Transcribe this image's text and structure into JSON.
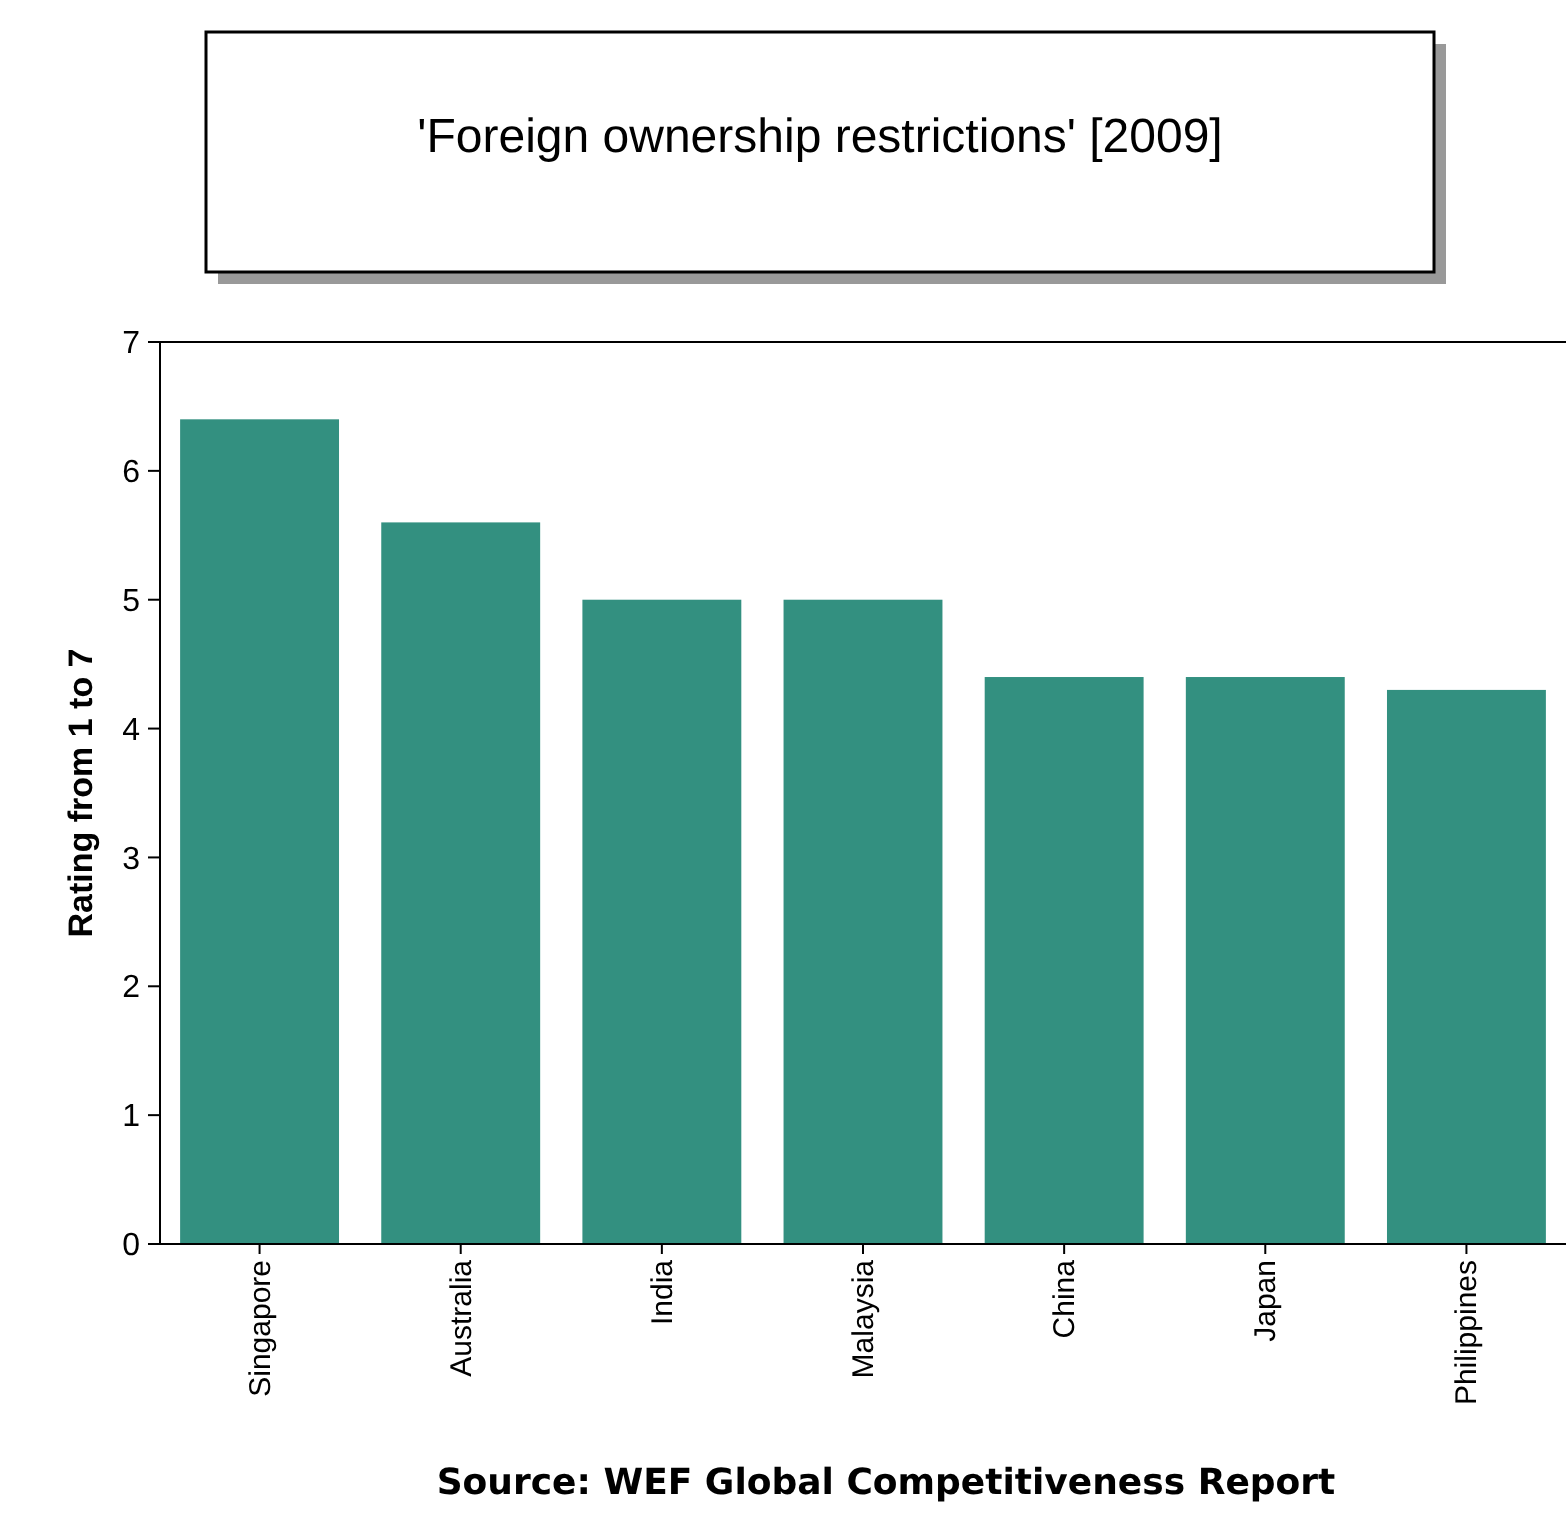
{
  "chart_data": {
    "type": "bar",
    "title": "'Foreign ownership restrictions' [2009]",
    "categories": [
      "Singapore",
      "Australia",
      "India",
      "Malaysia",
      "China",
      "Japan",
      "Philippines"
    ],
    "values": [
      6.4,
      5.6,
      5.0,
      5.0,
      4.4,
      4.4,
      4.3
    ],
    "color": "#339080",
    "ylabel": "Rating from 1 to 7",
    "ylim": [
      0,
      7
    ],
    "yticks": [
      0,
      1,
      2,
      3,
      4,
      5,
      6,
      7
    ],
    "grid": false,
    "annotations": [
      "Source: WEF Global Competitiveness Report"
    ]
  }
}
